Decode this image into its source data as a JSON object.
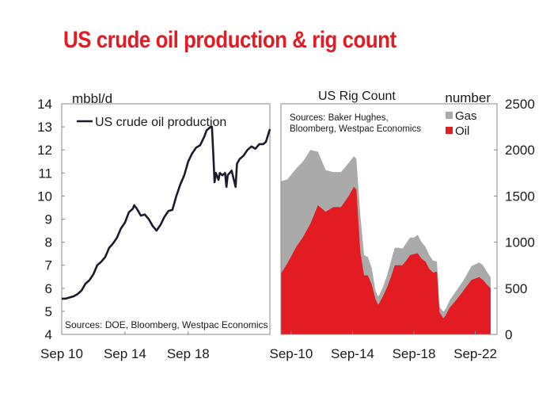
{
  "page": {
    "title": "US crude oil production & rig count"
  },
  "colors": {
    "title": "#e31b23",
    "oil_line": "#1a1c2c",
    "oil_rigs": "#e31b23",
    "gas_rigs": "#aaaaaa",
    "frame": "#888888"
  },
  "chart_data": [
    {
      "type": "line",
      "ylabel": "mbbl/d",
      "ylim": [
        4,
        14
      ],
      "yticks": [
        "4",
        "5",
        "6",
        "7",
        "8",
        "9",
        "10",
        "11",
        "12",
        "13",
        "14"
      ],
      "xlim": [
        "2010-09",
        "2023-11"
      ],
      "xticks": [
        {
          "date": "2010-09",
          "label": "Sep 10"
        },
        {
          "date": "2014-09",
          "label": "Sep 14"
        },
        {
          "date": "2018-09",
          "label": "Sep 18"
        }
      ],
      "grid": false,
      "legend_position": "top-left",
      "source": "Sources: DOE, Bloomberg, Westpac Economics",
      "series": [
        {
          "name": "US crude oil production",
          "points": [
            [
              "2010-09",
              5.55
            ],
            [
              "2010-12",
              5.55
            ],
            [
              "2011-03",
              5.6
            ],
            [
              "2011-06",
              5.65
            ],
            [
              "2011-09",
              5.75
            ],
            [
              "2011-12",
              5.9
            ],
            [
              "2012-03",
              6.2
            ],
            [
              "2012-06",
              6.35
            ],
            [
              "2012-09",
              6.6
            ],
            [
              "2012-12",
              7.0
            ],
            [
              "2013-03",
              7.15
            ],
            [
              "2013-06",
              7.35
            ],
            [
              "2013-09",
              7.75
            ],
            [
              "2013-12",
              7.95
            ],
            [
              "2014-03",
              8.2
            ],
            [
              "2014-06",
              8.6
            ],
            [
              "2014-09",
              8.85
            ],
            [
              "2014-12",
              9.3
            ],
            [
              "2015-03",
              9.45
            ],
            [
              "2015-04",
              9.6
            ],
            [
              "2015-06",
              9.45
            ],
            [
              "2015-09",
              9.15
            ],
            [
              "2015-12",
              9.2
            ],
            [
              "2016-03",
              9.0
            ],
            [
              "2016-06",
              8.7
            ],
            [
              "2016-09",
              8.5
            ],
            [
              "2016-12",
              8.75
            ],
            [
              "2017-03",
              9.1
            ],
            [
              "2017-06",
              9.35
            ],
            [
              "2017-09",
              9.4
            ],
            [
              "2017-10",
              9.6
            ],
            [
              "2017-12",
              10.0
            ],
            [
              "2018-03",
              10.5
            ],
            [
              "2018-06",
              10.9
            ],
            [
              "2018-09",
              11.5
            ],
            [
              "2018-12",
              11.85
            ],
            [
              "2019-03",
              12.1
            ],
            [
              "2019-06",
              12.2
            ],
            [
              "2019-09",
              12.55
            ],
            [
              "2019-11",
              12.85
            ],
            [
              "2020-02",
              13.0
            ],
            [
              "2020-03",
              13.0
            ],
            [
              "2020-04",
              11.9
            ],
            [
              "2020-05",
              10.6
            ],
            [
              "2020-06",
              11.0
            ],
            [
              "2020-08",
              10.7
            ],
            [
              "2020-09",
              11.0
            ],
            [
              "2020-11",
              10.9
            ],
            [
              "2021-01",
              11.0
            ],
            [
              "2021-02",
              10.4
            ],
            [
              "2021-03",
              10.9
            ],
            [
              "2021-06",
              11.1
            ],
            [
              "2021-09",
              10.4
            ],
            [
              "2021-10",
              11.4
            ],
            [
              "2021-12",
              11.6
            ],
            [
              "2022-03",
              11.75
            ],
            [
              "2022-06",
              12.0
            ],
            [
              "2022-09",
              12.15
            ],
            [
              "2022-12",
              12.05
            ],
            [
              "2023-03",
              12.25
            ],
            [
              "2023-06",
              12.25
            ],
            [
              "2023-08",
              12.35
            ],
            [
              "2023-11",
              12.9
            ]
          ]
        }
      ]
    },
    {
      "type": "area",
      "title": "US Rig Count",
      "ylabel": "number",
      "ylim": [
        0,
        2500
      ],
      "yticks": [
        "0",
        "500",
        "1000",
        "1500",
        "2000",
        "2500"
      ],
      "xlim": [
        "2010-01",
        "2024-02"
      ],
      "xticks": [
        {
          "date": "2010-09",
          "label": "Sep-10"
        },
        {
          "date": "2014-09",
          "label": "Sep-14"
        },
        {
          "date": "2018-09",
          "label": "Sep-18"
        },
        {
          "date": "2022-09",
          "label": "Sep-22"
        }
      ],
      "grid": false,
      "stacked": true,
      "legend_position": "top-right",
      "source": [
        "Sources: Baker Hughes,",
        "Bloomberg, Westpac Economics"
      ],
      "series": [
        {
          "name": "Oil",
          "points": [
            [
              "2010-01",
              660
            ],
            [
              "2010-06",
              770
            ],
            [
              "2011-01",
              950
            ],
            [
              "2011-06",
              1050
            ],
            [
              "2011-12",
              1200
            ],
            [
              "2012-06",
              1400
            ],
            [
              "2012-12",
              1330
            ],
            [
              "2013-06",
              1380
            ],
            [
              "2013-12",
              1380
            ],
            [
              "2014-06",
              1500
            ],
            [
              "2014-10",
              1600
            ],
            [
              "2014-12",
              1570
            ],
            [
              "2015-03",
              900
            ],
            [
              "2015-06",
              640
            ],
            [
              "2015-09",
              640
            ],
            [
              "2015-12",
              540
            ],
            [
              "2016-03",
              380
            ],
            [
              "2016-05",
              320
            ],
            [
              "2016-06",
              340
            ],
            [
              "2016-09",
              420
            ],
            [
              "2016-12",
              510
            ],
            [
              "2017-03",
              620
            ],
            [
              "2017-06",
              750
            ],
            [
              "2017-09",
              750
            ],
            [
              "2017-12",
              750
            ],
            [
              "2018-03",
              800
            ],
            [
              "2018-06",
              860
            ],
            [
              "2018-09",
              870
            ],
            [
              "2018-12",
              880
            ],
            [
              "2019-03",
              820
            ],
            [
              "2019-06",
              790
            ],
            [
              "2019-09",
              710
            ],
            [
              "2019-12",
              670
            ],
            [
              "2020-03",
              680
            ],
            [
              "2020-05",
              240
            ],
            [
              "2020-08",
              175
            ],
            [
              "2020-10",
              210
            ],
            [
              "2021-01",
              290
            ],
            [
              "2021-06",
              370
            ],
            [
              "2021-12",
              480
            ],
            [
              "2022-06",
              590
            ],
            [
              "2022-12",
              620
            ],
            [
              "2023-03",
              590
            ],
            [
              "2023-06",
              540
            ],
            [
              "2023-09",
              500
            ]
          ]
        },
        {
          "name": "Gas",
          "points": [
            [
              "2010-01",
              1660
            ],
            [
              "2010-06",
              1680
            ],
            [
              "2011-01",
              1800
            ],
            [
              "2011-06",
              1870
            ],
            [
              "2011-12",
              2000
            ],
            [
              "2012-06",
              1980
            ],
            [
              "2012-12",
              1780
            ],
            [
              "2013-06",
              1760
            ],
            [
              "2013-12",
              1760
            ],
            [
              "2014-06",
              1860
            ],
            [
              "2014-10",
              1930
            ],
            [
              "2014-12",
              1900
            ],
            [
              "2015-03",
              1300
            ],
            [
              "2015-06",
              860
            ],
            [
              "2015-09",
              840
            ],
            [
              "2015-12",
              720
            ],
            [
              "2016-03",
              470
            ],
            [
              "2016-05",
              410
            ],
            [
              "2016-06",
              430
            ],
            [
              "2016-09",
              520
            ],
            [
              "2016-12",
              640
            ],
            [
              "2017-03",
              790
            ],
            [
              "2017-06",
              940
            ],
            [
              "2017-09",
              940
            ],
            [
              "2017-12",
              930
            ],
            [
              "2018-03",
              990
            ],
            [
              "2018-06",
              1050
            ],
            [
              "2018-09",
              1050
            ],
            [
              "2018-12",
              1080
            ],
            [
              "2019-03",
              1000
            ],
            [
              "2019-06",
              950
            ],
            [
              "2019-09",
              860
            ],
            [
              "2019-12",
              800
            ],
            [
              "2020-03",
              790
            ],
            [
              "2020-05",
              300
            ],
            [
              "2020-08",
              245
            ],
            [
              "2020-10",
              280
            ],
            [
              "2021-01",
              370
            ],
            [
              "2021-06",
              470
            ],
            [
              "2021-12",
              590
            ],
            [
              "2022-06",
              740
            ],
            [
              "2022-12",
              780
            ],
            [
              "2023-03",
              750
            ],
            [
              "2023-06",
              680
            ],
            [
              "2023-09",
              620
            ]
          ]
        }
      ]
    }
  ]
}
